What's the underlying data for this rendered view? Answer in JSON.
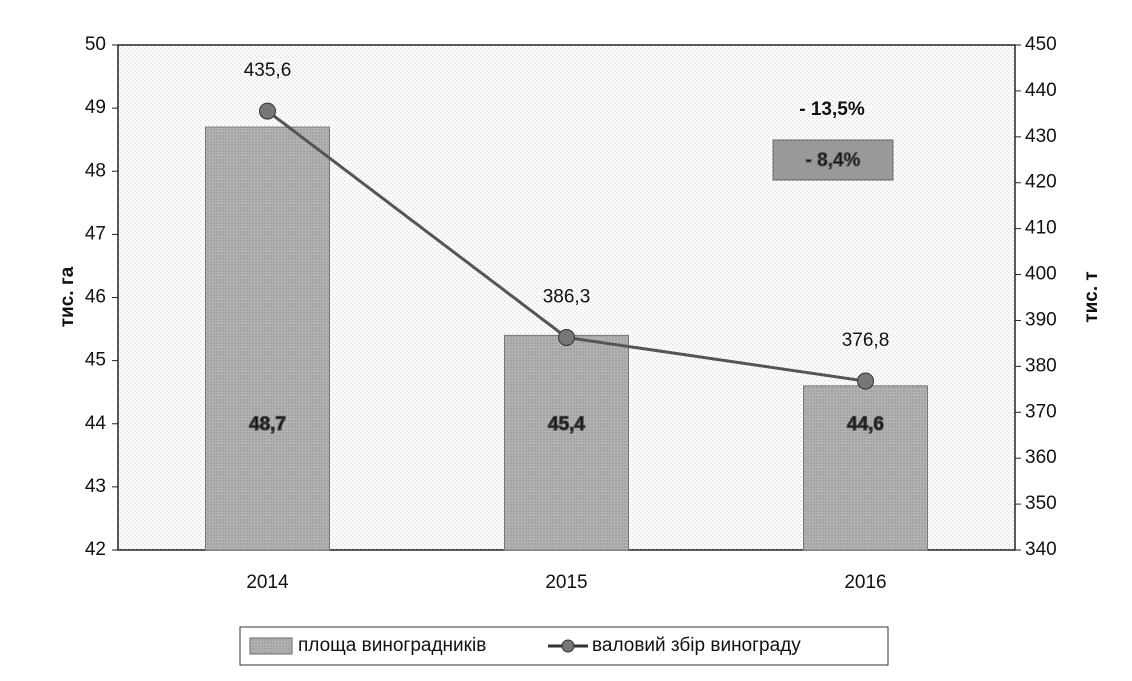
{
  "chart_data": {
    "type": "bar",
    "categories": [
      "2014",
      "2015",
      "2016"
    ],
    "series": [
      {
        "name": "площа виноградників",
        "type": "bar",
        "color": "#b3b3b3",
        "values": [
          48.7,
          45.4,
          44.6
        ],
        "value_labels": [
          "48,7",
          "45,4",
          "44,6"
        ]
      },
      {
        "name": "валовий збір винограду",
        "type": "line",
        "axis": "y2",
        "color": "#555555",
        "values": [
          435.6,
          386.3,
          376.8
        ],
        "value_labels": [
          "435,6",
          "386,3",
          "376,8"
        ]
      }
    ],
    "ylabel": "тис. га",
    "y2label": "тис. т",
    "ylim": [
      42,
      50
    ],
    "yticks": [
      42,
      43,
      44,
      45,
      46,
      47,
      48,
      49,
      50
    ],
    "y2lim": [
      340,
      450
    ],
    "y2ticks": [
      340,
      350,
      360,
      370,
      380,
      390,
      400,
      410,
      420,
      430,
      440,
      450
    ],
    "annotations": [
      "- 13,5%",
      "- 8,4%"
    ],
    "legend": "bottom"
  }
}
